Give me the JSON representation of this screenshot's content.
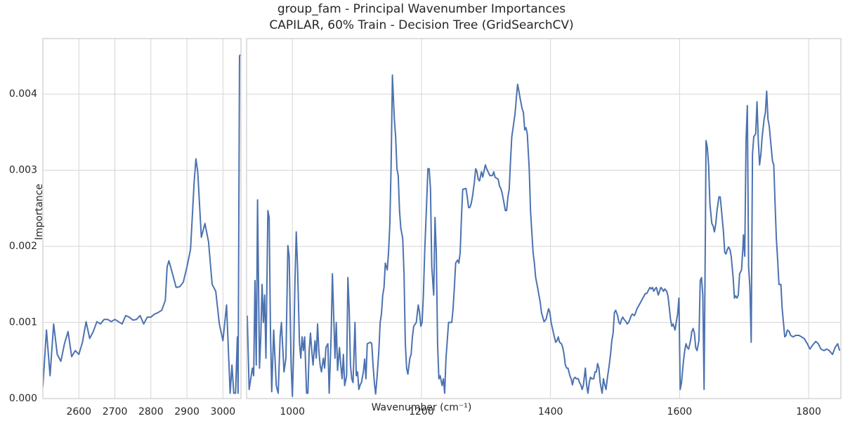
{
  "title": "group_fam - Principal Wavenumber Importances",
  "subtitle": "CAPILAR, 60% Train - Decision Tree (GridSearchCV)",
  "xlabel": "Wavenumber (cm⁻¹)",
  "ylabel": "Importance",
  "chart_data": [
    {
      "type": "line",
      "color": "#4c72b0",
      "grid": true,
      "xlim": [
        2500,
        3050
      ],
      "ylim": [
        0,
        0.00473
      ],
      "xticks": [
        2600,
        2700,
        2800,
        2900,
        3000
      ],
      "yticks": [
        {
          "value": 0,
          "label": "0.000"
        },
        {
          "value": 0.001,
          "label": "0.001"
        },
        {
          "value": 0.002,
          "label": "0.002"
        },
        {
          "value": 0.003,
          "label": "0.003"
        },
        {
          "value": 0.004,
          "label": "0.004"
        }
      ],
      "x": [
        2500,
        2510,
        2520,
        2530,
        2540,
        2550,
        2560,
        2570,
        2580,
        2590,
        2600,
        2610,
        2620,
        2630,
        2640,
        2650,
        2660,
        2670,
        2680,
        2690,
        2700,
        2710,
        2720,
        2730,
        2740,
        2750,
        2760,
        2770,
        2780,
        2790,
        2800,
        2810,
        2820,
        2830,
        2840,
        2845,
        2850,
        2860,
        2870,
        2880,
        2890,
        2900,
        2910,
        2920,
        2925,
        2930,
        2940,
        2950,
        2960,
        2970,
        2980,
        2990,
        3000,
        3010,
        3020,
        3025,
        3030,
        3035,
        3040,
        3042,
        3046,
        3048
      ],
      "values": [
        0.00015,
        0.0009,
        0.0003,
        0.00098,
        0.00058,
        0.00049,
        0.00072,
        0.00088,
        0.00055,
        0.00063,
        0.00058,
        0.00074,
        0.00101,
        0.00079,
        0.00088,
        0.00101,
        0.00098,
        0.00104,
        0.00104,
        0.00101,
        0.00104,
        0.00101,
        0.00098,
        0.00109,
        0.00107,
        0.00103,
        0.00104,
        0.00109,
        0.00098,
        0.00107,
        0.00107,
        0.00111,
        0.00113,
        0.00116,
        0.00129,
        0.00173,
        0.00181,
        0.00164,
        0.00146,
        0.00147,
        0.00153,
        0.00173,
        0.00196,
        0.00284,
        0.00315,
        0.00298,
        0.00212,
        0.0023,
        0.00206,
        0.0015,
        0.00141,
        0.00098,
        0.00076,
        0.00123,
        7e-05,
        0.00044,
        7e-05,
        7e-05,
        0.00081,
        7e-05,
        0.0045,
        0.00452
      ]
    },
    {
      "type": "line",
      "color": "#4c72b0",
      "grid": true,
      "xlim": [
        929,
        1850
      ],
      "ylim": [
        0,
        0.00473
      ],
      "xticks": [
        1000,
        1200,
        1400,
        1600,
        1800
      ],
      "x": [
        930,
        933,
        938,
        940,
        942,
        944,
        946,
        949,
        951,
        953,
        955,
        957,
        959,
        962,
        964,
        966,
        968,
        971,
        975,
        978,
        981,
        983,
        987,
        990,
        993,
        995,
        998,
        1000,
        1002,
        1004,
        1006,
        1008,
        1011,
        1013,
        1015,
        1017,
        1019,
        1022,
        1024,
        1026,
        1028,
        1030,
        1032,
        1035,
        1037,
        1039,
        1041,
        1043,
        1045,
        1048,
        1050,
        1052,
        1055,
        1057,
        1060,
        1062,
        1064,
        1066,
        1068,
        1070,
        1073,
        1075,
        1077,
        1079,
        1081,
        1084,
        1086,
        1088,
        1090,
        1092,
        1094,
        1097,
        1099,
        1101,
        1103,
        1105,
        1107,
        1110,
        1112,
        1114,
        1116,
        1121,
        1123,
        1125,
        1127,
        1129,
        1131,
        1134,
        1136,
        1138,
        1140,
        1142,
        1144,
        1147,
        1149,
        1151,
        1153,
        1155,
        1158,
        1160,
        1162,
        1164,
        1166,
        1168,
        1171,
        1173,
        1175,
        1177,
        1179,
        1182,
        1184,
        1186,
        1188,
        1192,
        1195,
        1197,
        1199,
        1201,
        1203,
        1205,
        1208,
        1210,
        1212,
        1214,
        1216,
        1219,
        1221,
        1223,
        1225,
        1227,
        1229,
        1232,
        1234,
        1236,
        1238,
        1240,
        1242,
        1247,
        1249,
        1251,
        1253,
        1256,
        1258,
        1260,
        1262,
        1264,
        1269,
        1271,
        1273,
        1275,
        1277,
        1279,
        1282,
        1284,
        1286,
        1288,
        1290,
        1293,
        1295,
        1299,
        1301,
        1306,
        1310,
        1312,
        1314,
        1319,
        1321,
        1323,
        1325,
        1327,
        1330,
        1332,
        1334,
        1336,
        1338,
        1340,
        1343,
        1345,
        1347,
        1349,
        1351,
        1353,
        1356,
        1358,
        1360,
        1362,
        1364,
        1367,
        1369,
        1371,
        1373,
        1375,
        1377,
        1380,
        1382,
        1384,
        1386,
        1388,
        1390,
        1393,
        1395,
        1397,
        1399,
        1401,
        1403,
        1406,
        1408,
        1410,
        1412,
        1414,
        1417,
        1419,
        1421,
        1423,
        1425,
        1427,
        1430,
        1432,
        1434,
        1436,
        1438,
        1440,
        1443,
        1445,
        1447,
        1449,
        1451,
        1454,
        1456,
        1458,
        1460,
        1462,
        1464,
        1467,
        1469,
        1471,
        1473,
        1475,
        1477,
        1480,
        1482,
        1484,
        1486,
        1488,
        1491,
        1493,
        1495,
        1497,
        1499,
        1501,
        1504,
        1506,
        1508,
        1510,
        1512,
        1514,
        1517,
        1519,
        1521,
        1523,
        1525,
        1527,
        1530,
        1532,
        1534,
        1536,
        1538,
        1540,
        1543,
        1545,
        1547,
        1549,
        1551,
        1554,
        1556,
        1558,
        1560,
        1562,
        1564,
        1567,
        1569,
        1571,
        1573,
        1575,
        1577,
        1580,
        1582,
        1584,
        1586,
        1588,
        1590,
        1593,
        1595,
        1597,
        1599,
        1601,
        1603,
        1606,
        1608,
        1610,
        1612,
        1614,
        1617,
        1619,
        1621,
        1623,
        1625,
        1627,
        1630,
        1632,
        1634,
        1636,
        1638,
        1640,
        1641,
        1643,
        1645,
        1647,
        1650,
        1652,
        1654,
        1656,
        1658,
        1661,
        1663,
        1665,
        1668,
        1670,
        1672,
        1674,
        1676,
        1678,
        1680,
        1683,
        1685,
        1687,
        1689,
        1691,
        1693,
        1696,
        1698,
        1699,
        1701,
        1703,
        1705,
        1707,
        1709,
        1711,
        1713,
        1715,
        1718,
        1720,
        1722,
        1724,
        1726,
        1728,
        1731,
        1733,
        1735,
        1737,
        1739,
        1741,
        1744,
        1746,
        1748,
        1750,
        1752,
        1754,
        1757,
        1759,
        1761,
        1763,
        1765,
        1767,
        1770,
        1772,
        1776,
        1780,
        1785,
        1789,
        1793,
        1798,
        1802,
        1806,
        1811,
        1815,
        1819,
        1824,
        1828,
        1832,
        1837,
        1841,
        1845,
        1848
      ],
      "values": [
        0.00109,
        0.00012,
        0.0004,
        0.0003,
        0.00155,
        0.00044,
        0.00261,
        0.0004,
        0.00081,
        0.0015,
        0.001,
        0.00136,
        0.00053,
        0.00247,
        0.00238,
        0.0009,
        9e-05,
        0.0009,
        0.00017,
        7e-05,
        0.00081,
        0.001,
        0.00035,
        0.00053,
        0.00201,
        0.00187,
        0.00044,
        3e-05,
        0.00063,
        0.00155,
        0.00219,
        0.00173,
        0.00072,
        0.00053,
        0.00081,
        0.00063,
        0.00081,
        7e-05,
        7e-05,
        0.00063,
        0.00086,
        0.00063,
        0.00044,
        0.00076,
        0.00053,
        0.00098,
        0.00063,
        0.00044,
        0.00035,
        0.00053,
        0.0004,
        0.00067,
        0.00072,
        7e-05,
        0.00081,
        0.00164,
        0.00109,
        0.00053,
        0.001,
        0.00037,
        0.00067,
        0.00044,
        0.00026,
        0.00058,
        0.00017,
        0.0003,
        0.00159,
        0.00118,
        0.00044,
        0.00026,
        0.00021,
        0.001,
        0.0003,
        0.00035,
        0.00012,
        0.00018,
        0.00021,
        0.00035,
        0.00052,
        0.00026,
        0.00072,
        0.00074,
        0.00072,
        0.00044,
        0.00021,
        6e-05,
        0.00026,
        0.00063,
        0.001,
        0.00111,
        0.00136,
        0.00146,
        0.00178,
        0.00169,
        0.00192,
        0.00229,
        0.00307,
        0.00425,
        0.00367,
        0.00344,
        0.00302,
        0.00293,
        0.00247,
        0.00224,
        0.0021,
        0.00164,
        0.00072,
        0.0004,
        0.00032,
        0.00053,
        0.00058,
        0.00081,
        0.00095,
        0.001,
        0.00123,
        0.00113,
        0.00095,
        0.001,
        0.00136,
        0.00192,
        0.00256,
        0.00302,
        0.00302,
        0.00275,
        0.00173,
        0.00136,
        0.00238,
        0.00192,
        0.00072,
        0.00026,
        0.0003,
        0.00017,
        0.00026,
        7e-05,
        0.00053,
        0.00076,
        0.001,
        0.001,
        0.00118,
        0.00146,
        0.00178,
        0.00182,
        0.00178,
        0.00192,
        0.00238,
        0.00275,
        0.00276,
        0.00265,
        0.00251,
        0.00251,
        0.00256,
        0.00265,
        0.00284,
        0.00302,
        0.00298,
        0.00288,
        0.00286,
        0.00298,
        0.00291,
        0.00307,
        0.00302,
        0.00293,
        0.00293,
        0.00298,
        0.00291,
        0.00288,
        0.00279,
        0.00276,
        0.0027,
        0.00261,
        0.00247,
        0.00247,
        0.00265,
        0.00275,
        0.00312,
        0.00344,
        0.00362,
        0.00374,
        0.00394,
        0.00413,
        0.00404,
        0.00394,
        0.00381,
        0.00376,
        0.00353,
        0.00356,
        0.00348,
        0.00302,
        0.00247,
        0.00219,
        0.00192,
        0.00178,
        0.00159,
        0.00146,
        0.00136,
        0.00127,
        0.00113,
        0.00107,
        0.00101,
        0.00104,
        0.00111,
        0.00118,
        0.00113,
        0.001,
        0.00092,
        0.00081,
        0.00074,
        0.00076,
        0.00081,
        0.00074,
        0.00072,
        0.00067,
        0.00058,
        0.00044,
        0.0004,
        0.0004,
        0.0003,
        0.00026,
        0.00018,
        0.00026,
        0.00028,
        0.00026,
        0.00026,
        0.00021,
        0.00018,
        0.00012,
        0.00018,
        0.0004,
        0.00017,
        7e-05,
        0.00021,
        0.00028,
        0.00026,
        0.00026,
        0.00035,
        0.00035,
        0.00046,
        0.0004,
        0.00021,
        7e-05,
        0.00026,
        0.00018,
        0.00012,
        0.00026,
        0.00044,
        0.00058,
        0.00076,
        0.00086,
        0.00113,
        0.00116,
        0.00109,
        0.001,
        0.00098,
        0.00104,
        0.00107,
        0.00104,
        0.00101,
        0.00098,
        0.001,
        0.00104,
        0.00109,
        0.00111,
        0.00109,
        0.00113,
        0.00118,
        0.00121,
        0.00124,
        0.00127,
        0.00132,
        0.00135,
        0.00138,
        0.00138,
        0.00141,
        0.00146,
        0.00144,
        0.00146,
        0.00141,
        0.00144,
        0.00146,
        0.00136,
        0.00141,
        0.00146,
        0.00144,
        0.00141,
        0.00144,
        0.00141,
        0.00135,
        0.0012,
        0.00104,
        0.00095,
        0.00098,
        0.0009,
        0.00101,
        0.00111,
        0.00132,
        0.00012,
        0.00021,
        0.00049,
        0.00063,
        0.00072,
        0.00067,
        0.00065,
        0.00076,
        0.00088,
        0.00092,
        0.00086,
        0.00067,
        0.00063,
        0.00076,
        0.00155,
        0.00159,
        0.00136,
        0.00012,
        0.00219,
        0.00339,
        0.0033,
        0.00307,
        0.00256,
        0.0023,
        0.00227,
        0.00219,
        0.00229,
        0.00247,
        0.00265,
        0.00265,
        0.00247,
        0.00219,
        0.00192,
        0.0019,
        0.00196,
        0.00199,
        0.00196,
        0.00187,
        0.00159,
        0.00132,
        0.00135,
        0.00132,
        0.00136,
        0.00164,
        0.00169,
        0.00196,
        0.00215,
        0.00187,
        0.00339,
        0.00385,
        0.00173,
        0.00146,
        0.00074,
        0.00321,
        0.00344,
        0.00348,
        0.0039,
        0.00339,
        0.00307,
        0.00321,
        0.00344,
        0.00367,
        0.00376,
        0.00404,
        0.00367,
        0.00358,
        0.00339,
        0.00312,
        0.00307,
        0.00256,
        0.0021,
        0.00182,
        0.0015,
        0.0015,
        0.00118,
        0.001,
        0.00081,
        0.00083,
        0.0009,
        0.00088,
        0.00083,
        0.00081,
        0.00083,
        0.00083,
        0.00081,
        0.00079,
        0.00072,
        0.00065,
        0.0007,
        0.00075,
        0.00072,
        0.00065,
        0.00063,
        0.00065,
        0.00063,
        0.00058,
        0.00067,
        0.00072,
        0.00063
      ]
    }
  ]
}
